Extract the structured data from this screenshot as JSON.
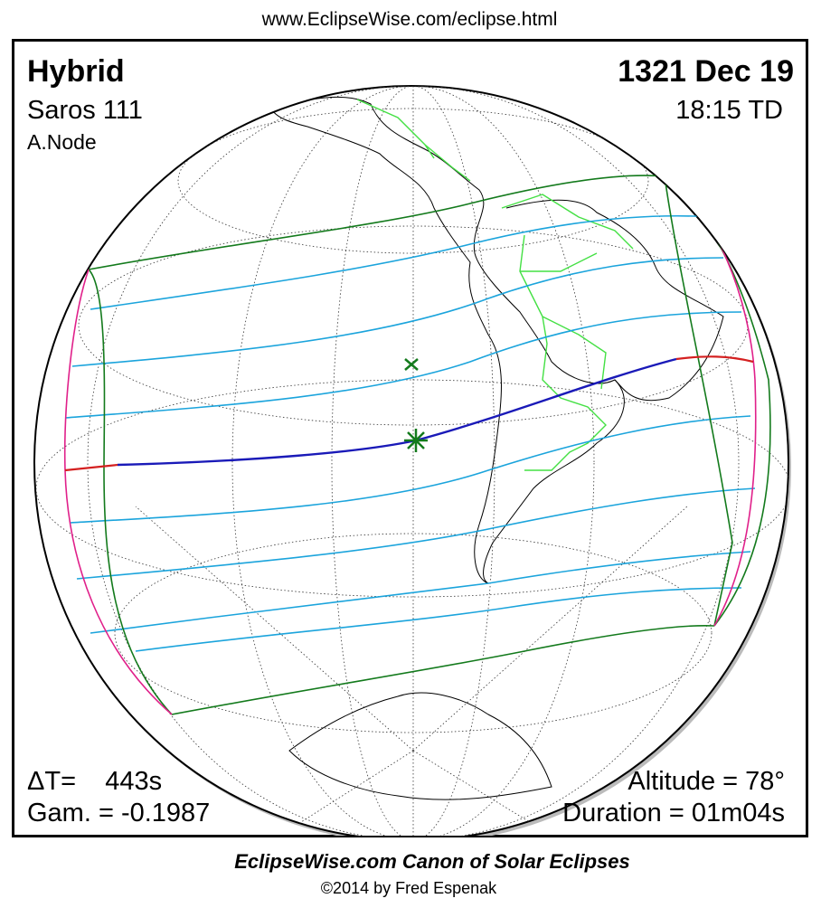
{
  "header": {
    "url": "www.EclipseWise.com/eclipse.html"
  },
  "map": {
    "eclipse_type": "Hybrid",
    "date": "1321 Dec 19",
    "saros": "Saros 111",
    "time": "18:15 TD",
    "node": "A.Node",
    "delta_t": "ΔT=    443s",
    "gamma": "Gam. = -0.1987",
    "altitude": "Altitude = 78°",
    "duration": "Duration = 01m04s"
  },
  "footer": {
    "title": "EclipseWise.com Canon of Solar Eclipses",
    "copyright": "©2014 by Fred Espenak"
  }
}
